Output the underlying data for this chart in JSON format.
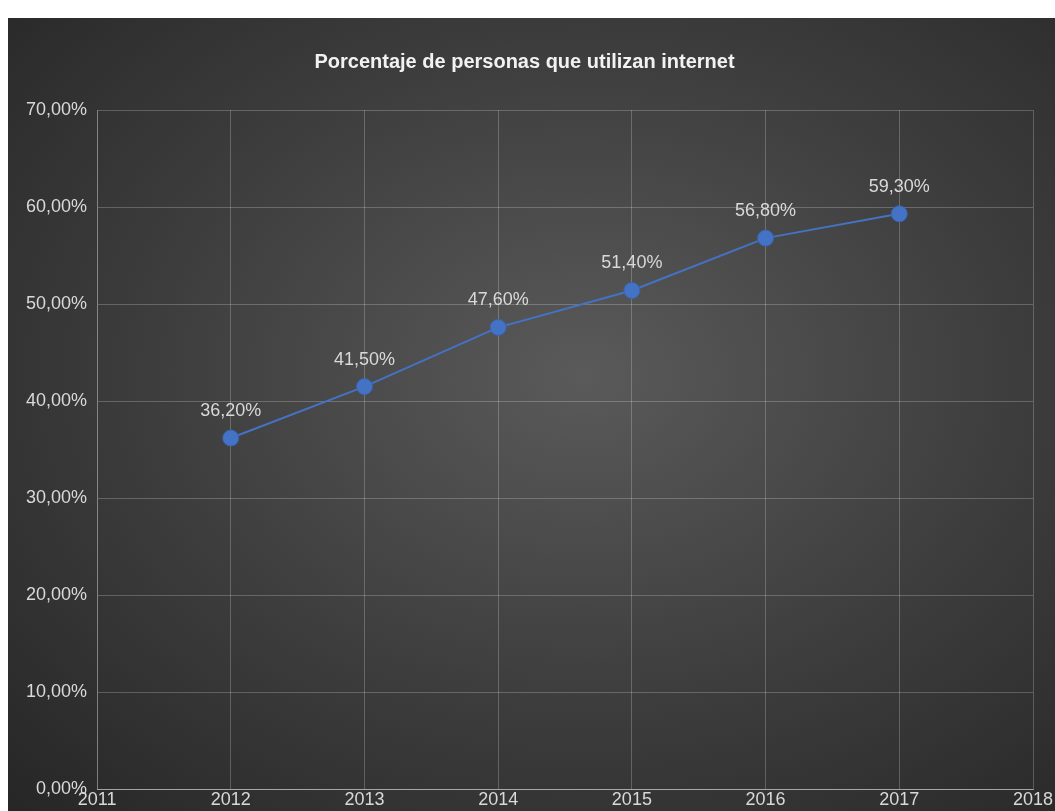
{
  "chart_data": {
    "type": "line",
    "title": "Porcentaje de personas que utilizan internet",
    "x": [
      2012,
      2013,
      2014,
      2015,
      2016,
      2017
    ],
    "series": [
      {
        "color": "#4472c4",
        "values": [
          36.2,
          41.5,
          47.6,
          51.4,
          56.8,
          59.3
        ],
        "value_labels": [
          "36,20%",
          "41,50%",
          "47,60%",
          "51,40%",
          "56,80%",
          "59,30%"
        ]
      }
    ],
    "xlim": [
      2011,
      2018
    ],
    "xticks": [
      2011,
      2012,
      2013,
      2014,
      2015,
      2016,
      2017,
      2018
    ],
    "ylim": [
      0,
      70
    ],
    "yticks": [
      {
        "value": 0,
        "label": "0,00%"
      },
      {
        "value": 10,
        "label": "10,00%"
      },
      {
        "value": 20,
        "label": "20,00%"
      },
      {
        "value": 30,
        "label": "30,00%"
      },
      {
        "value": 40,
        "label": "40,00%"
      },
      {
        "value": 50,
        "label": "50,00%"
      },
      {
        "value": 60,
        "label": "60,00%"
      },
      {
        "value": 70,
        "label": "70,00%"
      }
    ],
    "grid": true,
    "legend": false,
    "marker": "circle",
    "line_style": "solid"
  }
}
